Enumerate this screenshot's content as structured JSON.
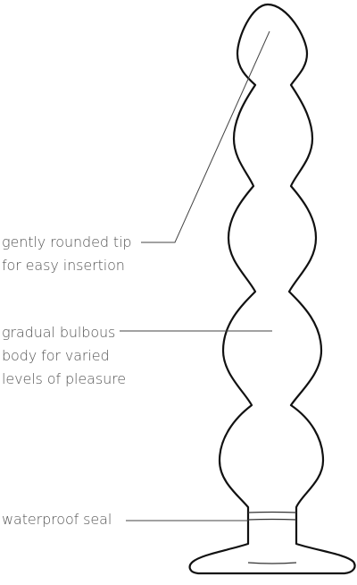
{
  "callouts": [
    {
      "id": "tip",
      "lines": [
        "gently rounded tip",
        "for easy insertion"
      ]
    },
    {
      "id": "body",
      "lines": [
        "gradual bulbous",
        "body for varied",
        "levels of pleasure"
      ]
    },
    {
      "id": "seal",
      "lines": [
        "waterproof seal"
      ]
    }
  ],
  "colors": {
    "outline": "#111111",
    "leader": "#444444",
    "text": "#555555",
    "background": "#ffffff"
  }
}
